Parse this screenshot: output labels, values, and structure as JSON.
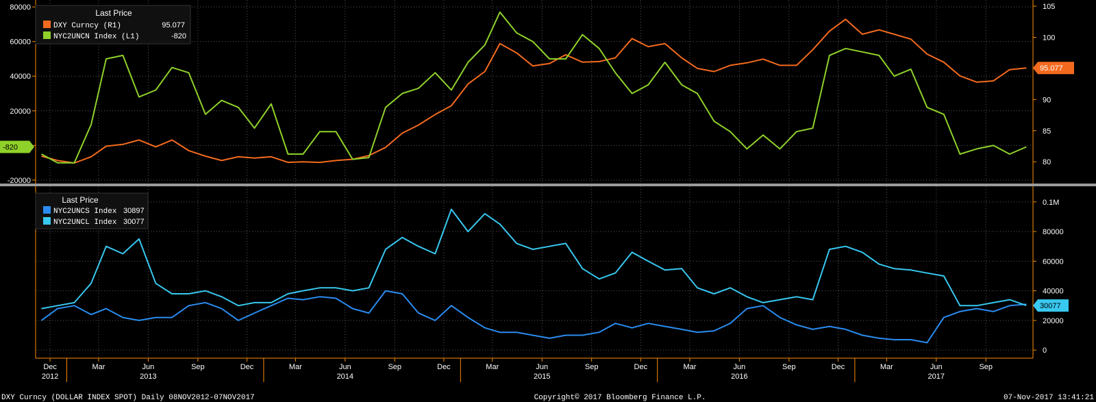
{
  "colors": {
    "background": "#000000",
    "axis": "#ff8c00",
    "axis_text": "#ffffff",
    "grid": "#5a5a5a",
    "divider": "#9a9a9a",
    "legend_bg": "#101010",
    "dxy": "#f36a1f",
    "nyc2uncn": "#8fd12a",
    "nyc2uncs": "#2a8cf0",
    "nyc2uncl": "#38c8f0"
  },
  "chart_data": [
    {
      "type": "line",
      "panel": "top",
      "legend_title": "Last Price",
      "legend_placement": "top-left",
      "grid": true,
      "y_left": {
        "range": [
          -22000,
          84000
        ],
        "ticks": [
          "80000",
          "60000",
          "40000",
          "20000",
          "0",
          "-20000"
        ],
        "tick_values": [
          80000,
          60000,
          40000,
          20000,
          0,
          -20000
        ]
      },
      "y_right": {
        "range": [
          76.5,
          106
        ],
        "ticks": [
          "105",
          "100",
          "95",
          "90",
          "85",
          "80"
        ],
        "tick_values": [
          105,
          100,
          95,
          90,
          85,
          80
        ]
      },
      "series": [
        {
          "name": "DXY Curncy  (R1)",
          "last_value": "95.077",
          "axis": "right",
          "color_key": "dxy",
          "x": [
            "2012-11",
            "2012-12",
            "2013-01",
            "2013-02",
            "2013-03",
            "2013-04",
            "2013-05",
            "2013-06",
            "2013-07",
            "2013-08",
            "2013-09",
            "2013-10",
            "2013-11",
            "2013-12",
            "2014-01",
            "2014-02",
            "2014-03",
            "2014-04",
            "2014-05",
            "2014-06",
            "2014-07",
            "2014-08",
            "2014-09",
            "2014-10",
            "2014-11",
            "2014-12",
            "2015-01",
            "2015-02",
            "2015-03",
            "2015-04",
            "2015-05",
            "2015-06",
            "2015-07",
            "2015-08",
            "2015-09",
            "2015-10",
            "2015-11",
            "2015-12",
            "2016-01",
            "2016-02",
            "2016-03",
            "2016-04",
            "2016-05",
            "2016-06",
            "2016-07",
            "2016-08",
            "2016-09",
            "2016-10",
            "2016-11",
            "2016-12",
            "2017-01",
            "2017-02",
            "2017-03",
            "2017-04",
            "2017-05",
            "2017-06",
            "2017-07",
            "2017-08",
            "2017-09",
            "2017-10",
            "2017-11"
          ],
          "values": [
            80.9,
            80.2,
            79.8,
            80.8,
            82.5,
            82.8,
            83.5,
            82.4,
            83.5,
            81.8,
            80.9,
            80.2,
            80.8,
            80.6,
            80.8,
            79.9,
            80.0,
            79.9,
            80.2,
            80.4,
            81.0,
            82.3,
            84.6,
            85.9,
            87.6,
            89.0,
            92.5,
            94.5,
            99.0,
            97.5,
            95.4,
            95.8,
            97.2,
            96.0,
            96.1,
            96.7,
            99.8,
            98.5,
            99.0,
            96.7,
            95.0,
            94.5,
            95.5,
            95.9,
            96.5,
            95.5,
            95.5,
            98.0,
            101.0,
            102.9,
            100.5,
            101.2,
            100.5,
            99.7,
            97.3,
            96.0,
            93.8,
            92.8,
            93.0,
            94.8,
            95.077
          ]
        },
        {
          "name": "NYC2UNCN Index  (L1)",
          "last_value": "-820",
          "axis": "left",
          "color_key": "nyc2uncn",
          "x": [
            "2012-11",
            "2012-12",
            "2013-01",
            "2013-02",
            "2013-03",
            "2013-04",
            "2013-05",
            "2013-06",
            "2013-07",
            "2013-08",
            "2013-09",
            "2013-10",
            "2013-11",
            "2013-12",
            "2014-01",
            "2014-02",
            "2014-03",
            "2014-04",
            "2014-05",
            "2014-06",
            "2014-07",
            "2014-08",
            "2014-09",
            "2014-10",
            "2014-11",
            "2014-12",
            "2015-01",
            "2015-02",
            "2015-03",
            "2015-04",
            "2015-05",
            "2015-06",
            "2015-07",
            "2015-08",
            "2015-09",
            "2015-10",
            "2015-11",
            "2015-12",
            "2016-01",
            "2016-02",
            "2016-03",
            "2016-04",
            "2016-05",
            "2016-06",
            "2016-07",
            "2016-08",
            "2016-09",
            "2016-10",
            "2016-11",
            "2016-12",
            "2017-01",
            "2017-02",
            "2017-03",
            "2017-04",
            "2017-05",
            "2017-06",
            "2017-07",
            "2017-08",
            "2017-09",
            "2017-10",
            "2017-11"
          ],
          "values": [
            -5000,
            -10000,
            -10000,
            12000,
            50000,
            52000,
            28000,
            32000,
            45000,
            42000,
            18000,
            26000,
            22000,
            10000,
            24000,
            -5000,
            -5000,
            8000,
            8000,
            -8000,
            -7000,
            22000,
            30000,
            33000,
            42000,
            32000,
            48000,
            58000,
            77000,
            65000,
            60000,
            50000,
            50000,
            64000,
            56000,
            42000,
            30000,
            35000,
            48000,
            35000,
            30000,
            14000,
            8000,
            -2000,
            6000,
            -2000,
            8000,
            10000,
            52000,
            56000,
            54000,
            52000,
            40000,
            44000,
            22000,
            18000,
            -5000,
            -2000,
            0,
            -5000,
            -820
          ]
        }
      ]
    },
    {
      "type": "line",
      "panel": "bottom",
      "legend_title": "Last Price",
      "legend_placement": "top-left",
      "grid": true,
      "y_right": {
        "range": [
          -5000,
          105000
        ],
        "ticks": [
          "0.1M",
          "80000",
          "60000",
          "40000",
          "20000",
          "0"
        ],
        "tick_values": [
          100000,
          80000,
          60000,
          40000,
          20000,
          0
        ]
      },
      "series": [
        {
          "name": "NYC2UNCS Index",
          "last_value": "30897",
          "axis": "right",
          "color_key": "nyc2uncs",
          "x": [
            "2012-11",
            "2012-12",
            "2013-01",
            "2013-02",
            "2013-03",
            "2013-04",
            "2013-05",
            "2013-06",
            "2013-07",
            "2013-08",
            "2013-09",
            "2013-10",
            "2013-11",
            "2013-12",
            "2014-01",
            "2014-02",
            "2014-03",
            "2014-04",
            "2014-05",
            "2014-06",
            "2014-07",
            "2014-08",
            "2014-09",
            "2014-10",
            "2014-11",
            "2014-12",
            "2015-01",
            "2015-02",
            "2015-03",
            "2015-04",
            "2015-05",
            "2015-06",
            "2015-07",
            "2015-08",
            "2015-09",
            "2015-10",
            "2015-11",
            "2015-12",
            "2016-01",
            "2016-02",
            "2016-03",
            "2016-04",
            "2016-05",
            "2016-06",
            "2016-07",
            "2016-08",
            "2016-09",
            "2016-10",
            "2016-11",
            "2016-12",
            "2017-01",
            "2017-02",
            "2017-03",
            "2017-04",
            "2017-05",
            "2017-06",
            "2017-07",
            "2017-08",
            "2017-09",
            "2017-10",
            "2017-11"
          ],
          "values": [
            20000,
            28000,
            30000,
            24000,
            28000,
            22000,
            20000,
            22000,
            22000,
            30000,
            32000,
            28000,
            20000,
            25000,
            30000,
            35000,
            34000,
            36000,
            35000,
            28000,
            25000,
            40000,
            38000,
            25000,
            20000,
            30000,
            22000,
            15000,
            12000,
            12000,
            10000,
            8000,
            10000,
            10000,
            12000,
            18000,
            15000,
            18000,
            16000,
            14000,
            12000,
            13000,
            18000,
            28000,
            30000,
            22000,
            17000,
            14000,
            16000,
            14000,
            10000,
            8000,
            7000,
            7000,
            5000,
            22000,
            26000,
            28000,
            26000,
            30000,
            30897
          ]
        },
        {
          "name": "NYC2UNCL Index",
          "last_value": "30077",
          "axis": "right",
          "color_key": "nyc2uncl",
          "x": [
            "2012-11",
            "2012-12",
            "2013-01",
            "2013-02",
            "2013-03",
            "2013-04",
            "2013-05",
            "2013-06",
            "2013-07",
            "2013-08",
            "2013-09",
            "2013-10",
            "2013-11",
            "2013-12",
            "2014-01",
            "2014-02",
            "2014-03",
            "2014-04",
            "2014-05",
            "2014-06",
            "2014-07",
            "2014-08",
            "2014-09",
            "2014-10",
            "2014-11",
            "2014-12",
            "2015-01",
            "2015-02",
            "2015-03",
            "2015-04",
            "2015-05",
            "2015-06",
            "2015-07",
            "2015-08",
            "2015-09",
            "2015-10",
            "2015-11",
            "2015-12",
            "2016-01",
            "2016-02",
            "2016-03",
            "2016-04",
            "2016-05",
            "2016-06",
            "2016-07",
            "2016-08",
            "2016-09",
            "2016-10",
            "2016-11",
            "2016-12",
            "2017-01",
            "2017-02",
            "2017-03",
            "2017-04",
            "2017-05",
            "2017-06",
            "2017-07",
            "2017-08",
            "2017-09",
            "2017-10",
            "2017-11"
          ],
          "values": [
            28000,
            30000,
            32000,
            45000,
            70000,
            65000,
            75000,
            45000,
            38000,
            38000,
            40000,
            36000,
            30000,
            32000,
            32000,
            38000,
            40000,
            42000,
            42000,
            40000,
            42000,
            68000,
            76000,
            70000,
            65000,
            95000,
            80000,
            92000,
            85000,
            72000,
            68000,
            70000,
            72000,
            55000,
            48000,
            52000,
            66000,
            60000,
            54000,
            55000,
            42000,
            38000,
            42000,
            36000,
            32000,
            34000,
            36000,
            34000,
            68000,
            70000,
            66000,
            58000,
            55000,
            54000,
            52000,
            50000,
            30000,
            30000,
            32000,
            34000,
            30077
          ]
        }
      ]
    }
  ],
  "x_axis": {
    "range": [
      "2012-11-08",
      "2017-11-07"
    ],
    "month_ticks": [
      {
        "label": "Dec",
        "date": "2012-12-01"
      },
      {
        "label": "Mar",
        "date": "2013-03-01"
      },
      {
        "label": "Jun",
        "date": "2013-06-01"
      },
      {
        "label": "Sep",
        "date": "2013-09-01"
      },
      {
        "label": "Dec",
        "date": "2013-12-01"
      },
      {
        "label": "Mar",
        "date": "2014-03-01"
      },
      {
        "label": "Jun",
        "date": "2014-06-01"
      },
      {
        "label": "Sep",
        "date": "2014-09-01"
      },
      {
        "label": "Dec",
        "date": "2014-12-01"
      },
      {
        "label": "Mar",
        "date": "2015-03-01"
      },
      {
        "label": "Jun",
        "date": "2015-06-01"
      },
      {
        "label": "Sep",
        "date": "2015-09-01"
      },
      {
        "label": "Dec",
        "date": "2015-12-01"
      },
      {
        "label": "Mar",
        "date": "2016-03-01"
      },
      {
        "label": "Jun",
        "date": "2016-06-01"
      },
      {
        "label": "Sep",
        "date": "2016-09-01"
      },
      {
        "label": "Dec",
        "date": "2016-12-01"
      },
      {
        "label": "Mar",
        "date": "2017-03-01"
      },
      {
        "label": "Jun",
        "date": "2017-06-01"
      },
      {
        "label": "Sep",
        "date": "2017-09-01"
      }
    ],
    "year_ticks": [
      {
        "label": "2012",
        "date": "2012-12-01"
      },
      {
        "label": "2013",
        "date": "2013-06-01"
      },
      {
        "label": "2014",
        "date": "2014-06-01"
      },
      {
        "label": "2015",
        "date": "2015-06-01"
      },
      {
        "label": "2016",
        "date": "2016-06-01"
      },
      {
        "label": "2017",
        "date": "2017-06-01"
      }
    ]
  },
  "footer": {
    "left": "DXY Curncy (DOLLAR INDEX SPOT)  Daily 08NOV2012-07NOV2017",
    "center": "Copyright© 2017 Bloomberg Finance L.P.",
    "right": "07-Nov-2017 13:41:21"
  }
}
